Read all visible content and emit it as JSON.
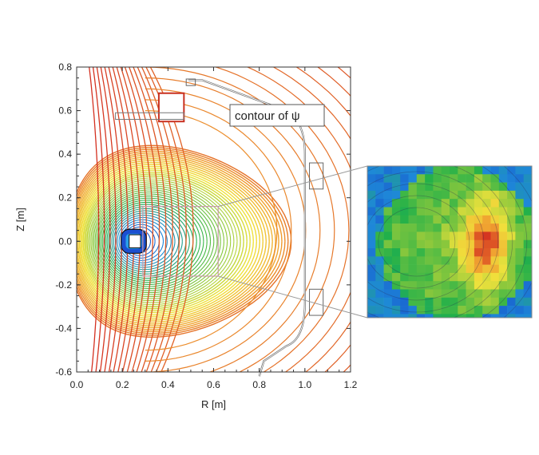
{
  "chart_data": {
    "type": "contour",
    "title": "",
    "xlabel": "R [m]",
    "ylabel": "Z [m]",
    "xlim": [
      0.0,
      1.2
    ],
    "ylim": [
      -0.6,
      0.8
    ],
    "x_ticks": [
      0.0,
      0.2,
      0.4,
      0.6,
      0.8,
      1.0,
      1.2
    ],
    "x_tick_labels": [
      "0.0",
      "0.2",
      "0.4",
      "0.6",
      "0.8",
      "1.0",
      "1.2"
    ],
    "y_ticks": [
      -0.6,
      -0.4,
      -0.2,
      0.0,
      0.2,
      0.4,
      0.6,
      0.8
    ],
    "y_tick_labels": [
      "-0.6",
      "-0.4",
      "-0.2",
      "0.0",
      "0.2",
      "0.4",
      "0.6",
      "0.8"
    ],
    "annotation": "contour of ψ",
    "annotation_points_to": [
      0.5,
      0.72
    ],
    "magnetic_axis": [
      0.25,
      0.0
    ],
    "inner_coil": {
      "r_min": 0.23,
      "r_max": 0.28,
      "z_min": -0.03,
      "z_max": 0.03
    },
    "upper_coil": {
      "r_min": 0.36,
      "r_max": 0.47,
      "z_min": 0.55,
      "z_max": 0.68
    },
    "zoom_region": {
      "r_min": 0.29,
      "r_max": 0.62,
      "z_min": -0.16,
      "z_max": 0.16
    },
    "separatrix_x_point": [
      0.5,
      0.47
    ],
    "vessel_wall": {
      "r_min": 0.52,
      "r_max": 1.0,
      "upper_ports": [
        [
          0.5,
          0.72
        ],
        [
          0.17,
          0.55
        ]
      ],
      "side_ports_z": [
        0.3,
        -0.28
      ]
    },
    "inset": {
      "description_colors": [
        "#1f5fd0",
        "#2aa9e0",
        "#3fbf5a",
        "#e8e03a",
        "#f08a2a",
        "#d92020"
      ],
      "hot_region_r_fraction": 0.72
    },
    "colormap": [
      "#1020c0",
      "#1e88d8",
      "#21b04a",
      "#8cc83c",
      "#f0e23c",
      "#f0a030",
      "#d43020"
    ],
    "grid": false,
    "legend": "none"
  }
}
